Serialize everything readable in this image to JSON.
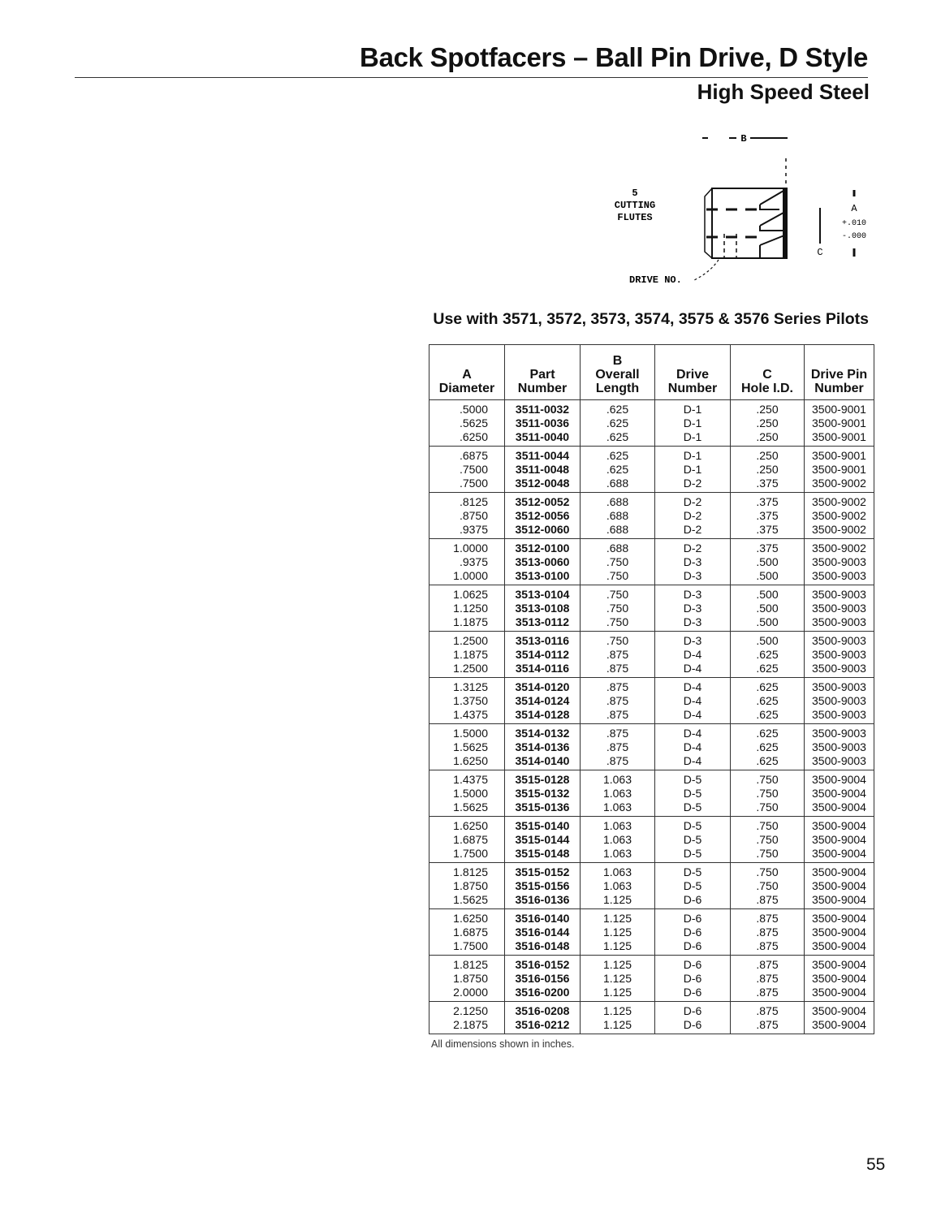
{
  "header": {
    "title": "Back Spotfacers – Ball Pin Drive, D Style",
    "subtitle": "High Speed Steel"
  },
  "diagram": {
    "dimension_b": "B",
    "flutes_label_1": "5",
    "flutes_label_2": "CUTTING",
    "flutes_label_3": "FLUTES",
    "dimension_a": "A",
    "tolerance_plus": "+.010",
    "tolerance_minus": "-.000",
    "dimension_c": "C",
    "drive_label": "DRIVE NO."
  },
  "use_with": "Use with 3571, 3572, 3573, 3574, 3575 & 3576 Series Pilots",
  "table": {
    "headers": [
      [
        "A",
        "Diameter"
      ],
      [
        "Part",
        "Number"
      ],
      [
        "B",
        "Overall",
        "Length"
      ],
      [
        "Drive",
        "Number"
      ],
      [
        "C",
        "Hole I.D."
      ],
      [
        "Drive Pin",
        "Number"
      ]
    ],
    "groups": [
      [
        [
          ".5000",
          "3511-0032",
          ".625",
          "D-1",
          ".250",
          "3500-9001"
        ],
        [
          ".5625",
          "3511-0036",
          ".625",
          "D-1",
          ".250",
          "3500-9001"
        ],
        [
          ".6250",
          "3511-0040",
          ".625",
          "D-1",
          ".250",
          "3500-9001"
        ]
      ],
      [
        [
          ".6875",
          "3511-0044",
          ".625",
          "D-1",
          ".250",
          "3500-9001"
        ],
        [
          ".7500",
          "3511-0048",
          ".625",
          "D-1",
          ".250",
          "3500-9001"
        ],
        [
          ".7500",
          "3512-0048",
          ".688",
          "D-2",
          ".375",
          "3500-9002"
        ]
      ],
      [
        [
          ".8125",
          "3512-0052",
          ".688",
          "D-2",
          ".375",
          "3500-9002"
        ],
        [
          ".8750",
          "3512-0056",
          ".688",
          "D-2",
          ".375",
          "3500-9002"
        ],
        [
          ".9375",
          "3512-0060",
          ".688",
          "D-2",
          ".375",
          "3500-9002"
        ]
      ],
      [
        [
          "1.0000",
          "3512-0100",
          ".688",
          "D-2",
          ".375",
          "3500-9002"
        ],
        [
          ".9375",
          "3513-0060",
          ".750",
          "D-3",
          ".500",
          "3500-9003"
        ],
        [
          "1.0000",
          "3513-0100",
          ".750",
          "D-3",
          ".500",
          "3500-9003"
        ]
      ],
      [
        [
          "1.0625",
          "3513-0104",
          ".750",
          "D-3",
          ".500",
          "3500-9003"
        ],
        [
          "1.1250",
          "3513-0108",
          ".750",
          "D-3",
          ".500",
          "3500-9003"
        ],
        [
          "1.1875",
          "3513-0112",
          ".750",
          "D-3",
          ".500",
          "3500-9003"
        ]
      ],
      [
        [
          "1.2500",
          "3513-0116",
          ".750",
          "D-3",
          ".500",
          "3500-9003"
        ],
        [
          "1.1875",
          "3514-0112",
          ".875",
          "D-4",
          ".625",
          "3500-9003"
        ],
        [
          "1.2500",
          "3514-0116",
          ".875",
          "D-4",
          ".625",
          "3500-9003"
        ]
      ],
      [
        [
          "1.3125",
          "3514-0120",
          ".875",
          "D-4",
          ".625",
          "3500-9003"
        ],
        [
          "1.3750",
          "3514-0124",
          ".875",
          "D-4",
          ".625",
          "3500-9003"
        ],
        [
          "1.4375",
          "3514-0128",
          ".875",
          "D-4",
          ".625",
          "3500-9003"
        ]
      ],
      [
        [
          "1.5000",
          "3514-0132",
          ".875",
          "D-4",
          ".625",
          "3500-9003"
        ],
        [
          "1.5625",
          "3514-0136",
          ".875",
          "D-4",
          ".625",
          "3500-9003"
        ],
        [
          "1.6250",
          "3514-0140",
          ".875",
          "D-4",
          ".625",
          "3500-9003"
        ]
      ],
      [
        [
          "1.4375",
          "3515-0128",
          "1.063",
          "D-5",
          ".750",
          "3500-9004"
        ],
        [
          "1.5000",
          "3515-0132",
          "1.063",
          "D-5",
          ".750",
          "3500-9004"
        ],
        [
          "1.5625",
          "3515-0136",
          "1.063",
          "D-5",
          ".750",
          "3500-9004"
        ]
      ],
      [
        [
          "1.6250",
          "3515-0140",
          "1.063",
          "D-5",
          ".750",
          "3500-9004"
        ],
        [
          "1.6875",
          "3515-0144",
          "1.063",
          "D-5",
          ".750",
          "3500-9004"
        ],
        [
          "1.7500",
          "3515-0148",
          "1.063",
          "D-5",
          ".750",
          "3500-9004"
        ]
      ],
      [
        [
          "1.8125",
          "3515-0152",
          "1.063",
          "D-5",
          ".750",
          "3500-9004"
        ],
        [
          "1.8750",
          "3515-0156",
          "1.063",
          "D-5",
          ".750",
          "3500-9004"
        ],
        [
          "1.5625",
          "3516-0136",
          "1.125",
          "D-6",
          ".875",
          "3500-9004"
        ]
      ],
      [
        [
          "1.6250",
          "3516-0140",
          "1.125",
          "D-6",
          ".875",
          "3500-9004"
        ],
        [
          "1.6875",
          "3516-0144",
          "1.125",
          "D-6",
          ".875",
          "3500-9004"
        ],
        [
          "1.7500",
          "3516-0148",
          "1.125",
          "D-6",
          ".875",
          "3500-9004"
        ]
      ],
      [
        [
          "1.8125",
          "3516-0152",
          "1.125",
          "D-6",
          ".875",
          "3500-9004"
        ],
        [
          "1.8750",
          "3516-0156",
          "1.125",
          "D-6",
          ".875",
          "3500-9004"
        ],
        [
          "2.0000",
          "3516-0200",
          "1.125",
          "D-6",
          ".875",
          "3500-9004"
        ]
      ],
      [
        [
          "2.1250",
          "3516-0208",
          "1.125",
          "D-6",
          ".875",
          "3500-9004"
        ],
        [
          "2.1875",
          "3516-0212",
          "1.125",
          "D-6",
          ".875",
          "3500-9004"
        ]
      ]
    ]
  },
  "footnote": "All dimensions shown in inches.",
  "page_number": "55"
}
